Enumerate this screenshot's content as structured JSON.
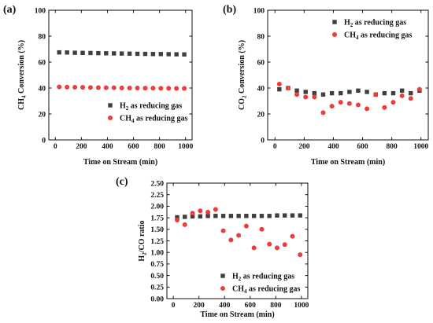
{
  "colors": {
    "h2": "#3f3f3f",
    "ch4": "#ee3b3b",
    "axis": "#111111"
  },
  "chart_data": [
    {
      "type": "scatter",
      "panel_label": "(a)",
      "ylabel_main": "CH",
      "ylabel_sub": "4",
      "ylabel_rest": " Conversion (%)",
      "xlabel": "Time on Stream (min)",
      "xlim": [
        -50,
        1050
      ],
      "ylim": [
        0,
        100
      ],
      "xticks": [
        "0",
        "200",
        "400",
        "600",
        "800",
        "1000"
      ],
      "yticks": [
        "0",
        "20",
        "40",
        "60",
        "80",
        "100"
      ],
      "legend_position": "lower-right",
      "series": [
        {
          "name_main": "H",
          "name_sub": "2",
          "name_rest": " as reducing gas",
          "marker": "square",
          "color_key": "h2",
          "x": [
            30,
            90,
            150,
            210,
            270,
            330,
            390,
            450,
            510,
            570,
            630,
            690,
            750,
            810,
            870,
            930,
            990
          ],
          "y": [
            67.5,
            67.4,
            67.2,
            67.1,
            67.0,
            66.9,
            66.8,
            66.7,
            66.6,
            66.5,
            66.4,
            66.3,
            66.2,
            66.2,
            66.1,
            66.0,
            65.9
          ]
        },
        {
          "name_main": "CH",
          "name_sub": "4",
          "name_rest": " as reducing gas",
          "marker": "circle",
          "color_key": "ch4",
          "x": [
            30,
            90,
            150,
            210,
            270,
            330,
            390,
            450,
            510,
            570,
            630,
            690,
            750,
            810,
            870,
            930,
            990
          ],
          "y": [
            40.8,
            40.7,
            40.6,
            40.5,
            40.4,
            40.3,
            40.2,
            40.2,
            40.1,
            40.0,
            40.0,
            39.9,
            39.9,
            39.8,
            39.8,
            39.7,
            39.7
          ]
        }
      ]
    },
    {
      "type": "scatter",
      "panel_label": "(b)",
      "ylabel_main": "CO",
      "ylabel_sub": "2",
      "ylabel_rest": " Conversion (%)",
      "xlabel": "Time on Stream (min)",
      "xlim": [
        -50,
        1050
      ],
      "ylim": [
        0,
        100
      ],
      "xticks": [
        "0",
        "200",
        "400",
        "600",
        "800",
        "1000"
      ],
      "yticks": [
        "0",
        "20",
        "40",
        "60",
        "80",
        "100"
      ],
      "legend_position": "top-right",
      "series": [
        {
          "name_main": "H",
          "name_sub": "2",
          "name_rest": " as reducing gas",
          "marker": "square",
          "color_key": "h2",
          "x": [
            30,
            90,
            150,
            210,
            270,
            330,
            390,
            450,
            510,
            570,
            630,
            690,
            750,
            810,
            870,
            930,
            990
          ],
          "y": [
            39,
            40,
            38,
            37,
            36,
            35,
            36,
            36,
            37,
            38,
            37,
            35,
            36,
            36,
            38,
            36,
            38
          ]
        },
        {
          "name_main": "CH",
          "name_sub": "4",
          "name_rest": " as reducing gas",
          "marker": "circle",
          "color_key": "ch4",
          "x": [
            30,
            90,
            150,
            210,
            270,
            330,
            390,
            450,
            510,
            570,
            630,
            690,
            750,
            810,
            870,
            930,
            990
          ],
          "y": [
            43,
            40,
            35,
            33,
            33,
            21,
            26,
            29,
            28,
            27,
            24,
            35,
            25,
            29,
            34,
            32,
            39
          ]
        }
      ]
    },
    {
      "type": "scatter",
      "panel_label": "(c)",
      "ylabel_main": "H",
      "ylabel_sub": "2",
      "ylabel_rest": "/CO ratio",
      "xlabel": "Time on Stream (min)",
      "xlim": [
        -50,
        1050
      ],
      "ylim": [
        0,
        2.5
      ],
      "xticks": [
        "0",
        "200",
        "400",
        "600",
        "800",
        "1000"
      ],
      "yticks": [
        "0.00",
        "0.25",
        "0.50",
        "0.75",
        "1.00",
        "1.25",
        "1.50",
        "1.75",
        "2.00",
        "2.25",
        "2.50"
      ],
      "legend_position": "lower-right",
      "series": [
        {
          "name_main": "H",
          "name_sub": "2",
          "name_rest": " as reducing gas",
          "marker": "square",
          "color_key": "h2",
          "x": [
            30,
            90,
            150,
            210,
            270,
            330,
            390,
            450,
            510,
            570,
            630,
            690,
            750,
            810,
            870,
            930,
            990
          ],
          "y": [
            1.76,
            1.77,
            1.78,
            1.78,
            1.79,
            1.79,
            1.79,
            1.79,
            1.79,
            1.79,
            1.79,
            1.79,
            1.79,
            1.8,
            1.8,
            1.8,
            1.8
          ]
        },
        {
          "name_main": "CH",
          "name_sub": "4",
          "name_rest": " as reducing gas",
          "marker": "circle",
          "color_key": "ch4",
          "x": [
            30,
            90,
            150,
            210,
            270,
            330,
            390,
            450,
            510,
            570,
            630,
            690,
            750,
            810,
            870,
            930,
            990
          ],
          "y": [
            1.7,
            1.6,
            1.85,
            1.9,
            1.87,
            1.93,
            1.47,
            1.27,
            1.37,
            1.57,
            1.1,
            1.5,
            1.18,
            1.1,
            1.17,
            1.35,
            0.95
          ]
        }
      ]
    }
  ]
}
